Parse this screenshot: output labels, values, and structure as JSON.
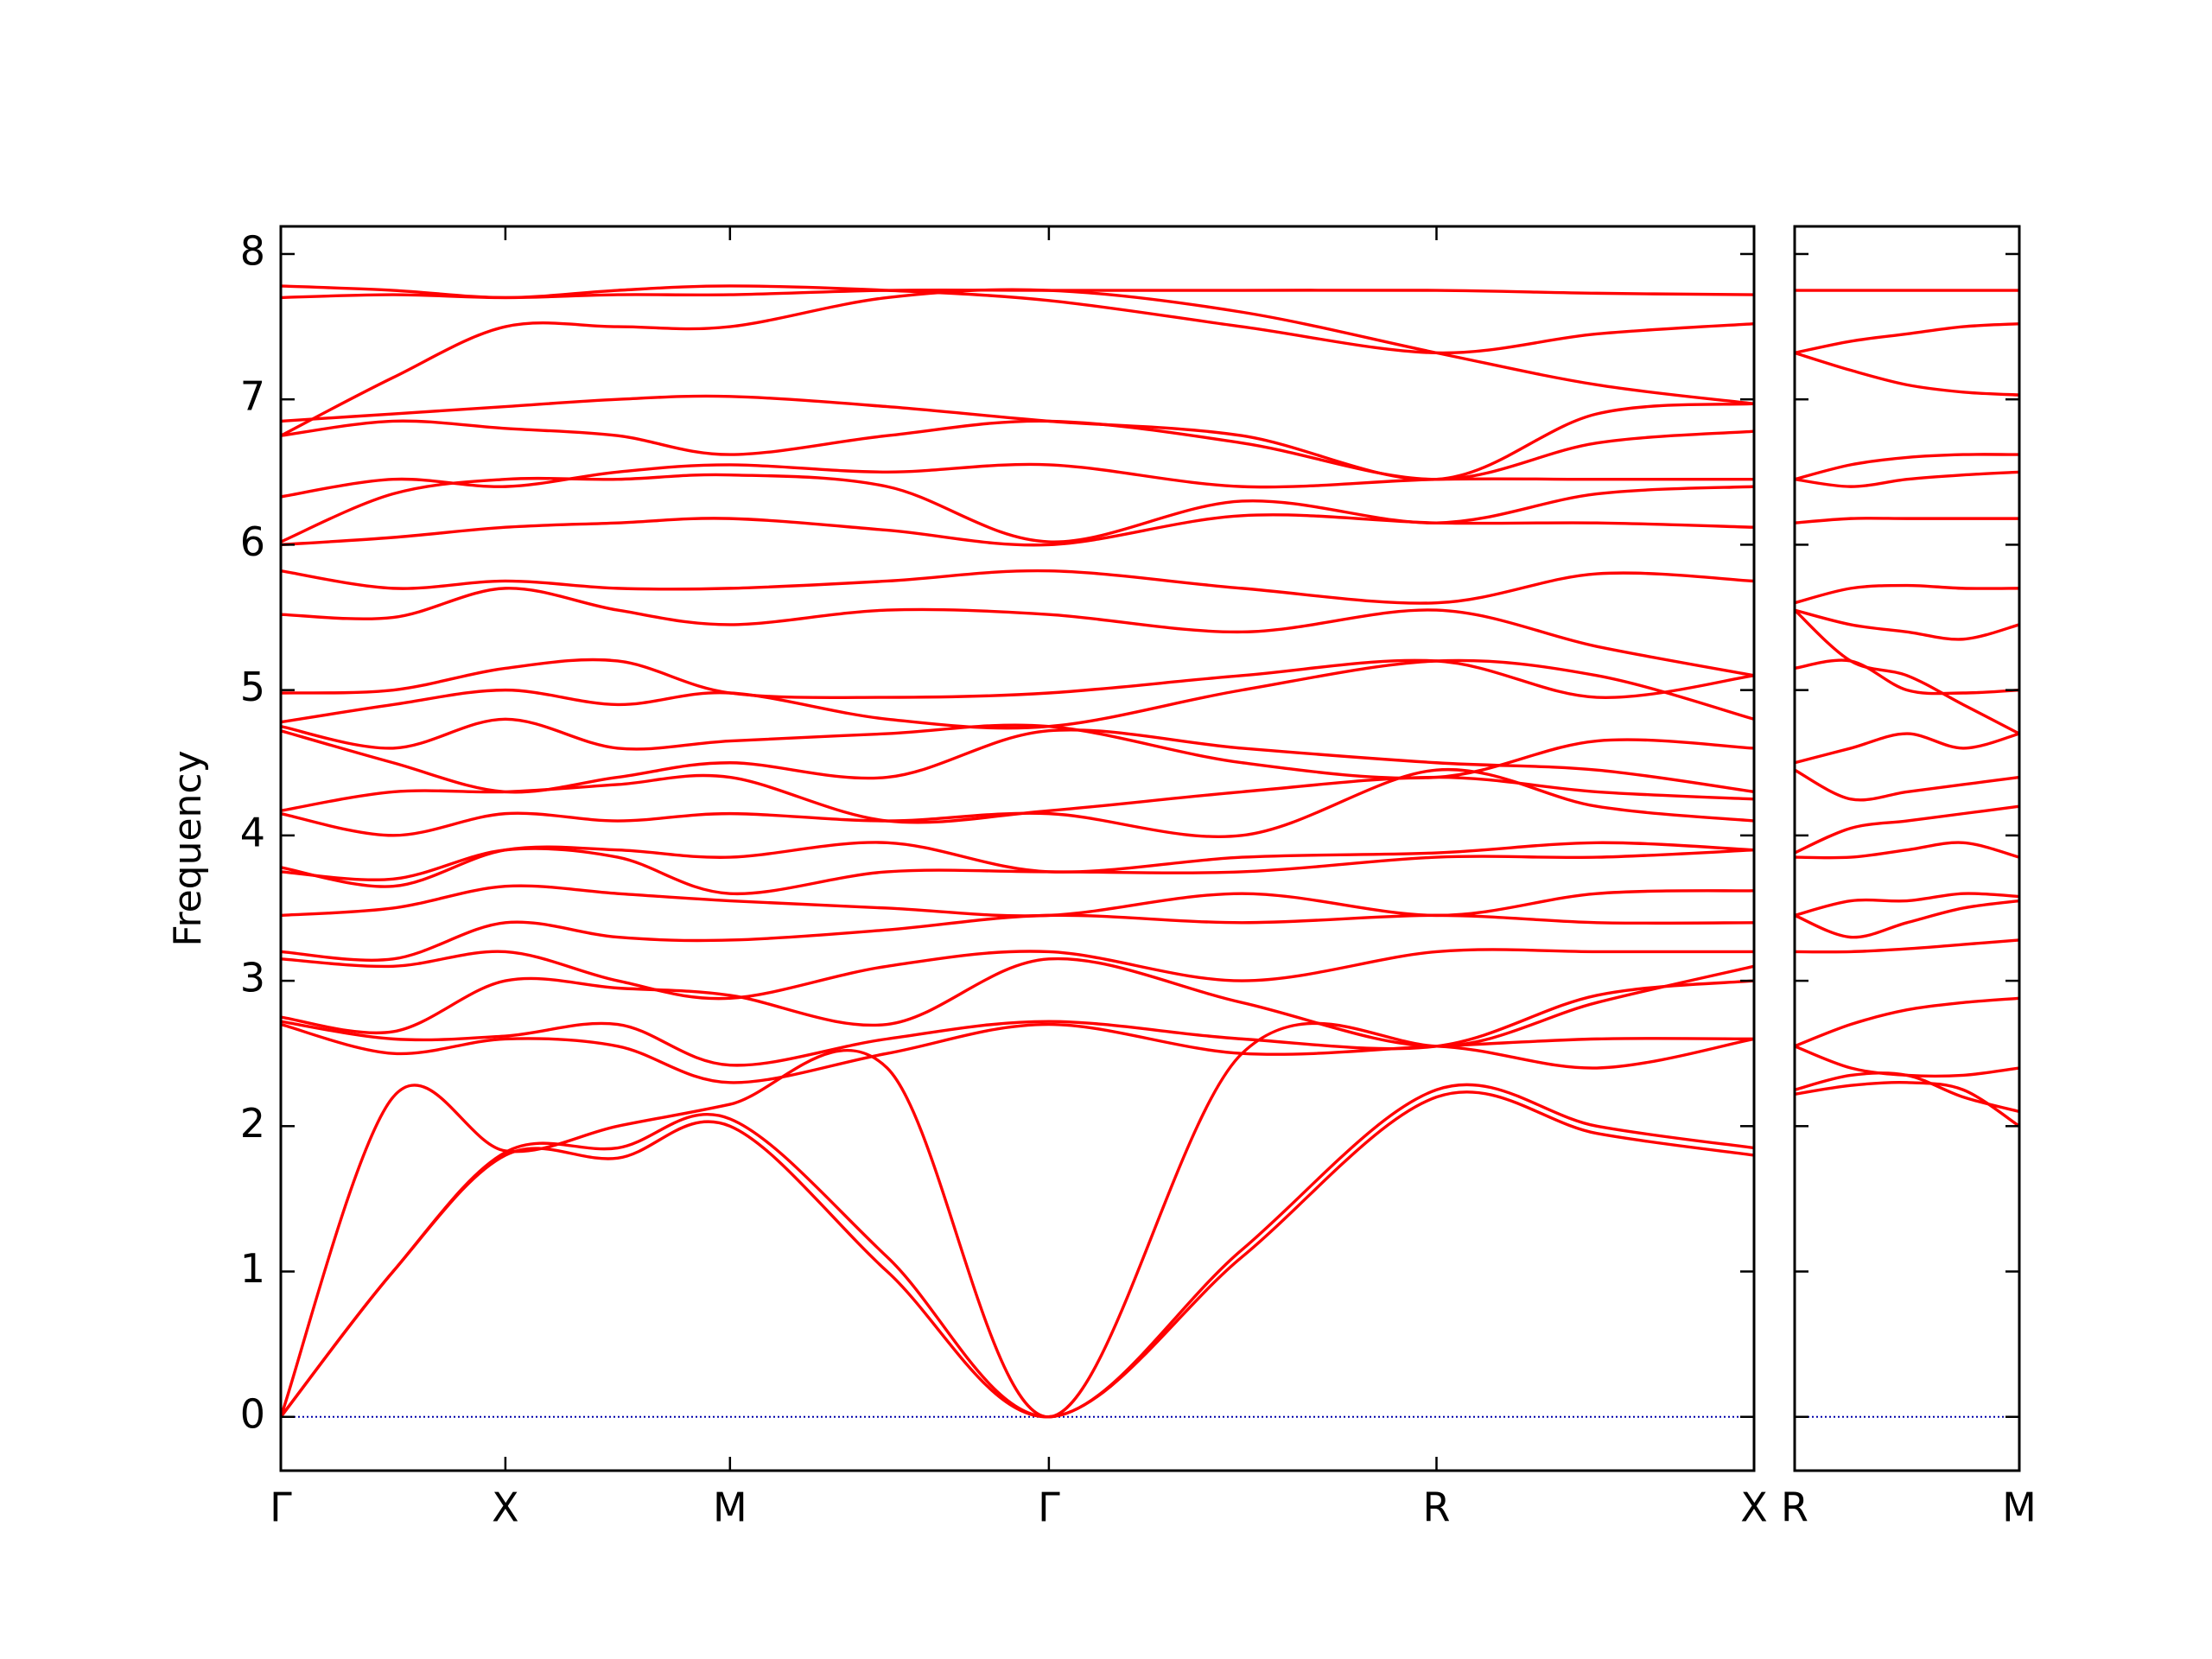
{
  "chart_data": [
    {
      "type": "line",
      "ylabel": "Frequency",
      "color": "#ff0000",
      "zero_line": true,
      "zero_line_color": "#0000aa",
      "x": [
        0,
        0.25,
        0.5,
        0.75,
        1.0,
        1.35,
        1.71,
        2.14,
        2.573,
        2.93,
        3.28
      ],
      "xlim": [
        0,
        3.28
      ],
      "xticks": [
        {
          "value": 0,
          "label": "Γ"
        },
        {
          "value": 0.5,
          "label": "X"
        },
        {
          "value": 1.0,
          "label": "M"
        },
        {
          "value": 1.71,
          "label": "Γ"
        },
        {
          "value": 2.573,
          "label": "R"
        },
        {
          "value": 3.28,
          "label": "X"
        }
      ],
      "ylim": [
        -0.37,
        8.19
      ],
      "yticks": [
        0,
        1,
        2,
        3,
        4,
        5,
        6,
        7,
        8
      ],
      "series": [
        {
          "values": [
            0,
            1.0,
            1.8,
            1.78,
            2.0,
            1.0,
            0,
            1.1,
            2.2,
            1.95,
            1.8
          ]
        },
        {
          "values": [
            0,
            1.0,
            1.82,
            1.85,
            2.05,
            1.1,
            0,
            1.15,
            2.25,
            2.0,
            1.85
          ]
        },
        {
          "values": [
            0,
            2.2,
            1.83,
            2.0,
            2.15,
            2.4,
            0,
            2.5,
            2.55,
            2.4,
            2.6
          ]
        },
        {
          "values": [
            2.7,
            2.5,
            2.6,
            2.55,
            2.3,
            2.5,
            2.7,
            2.5,
            2.55,
            2.6,
            2.6
          ]
        },
        {
          "values": [
            2.72,
            2.6,
            2.62,
            2.7,
            2.42,
            2.6,
            2.72,
            2.6,
            2.55,
            2.9,
            3.0
          ]
        },
        {
          "values": [
            2.75,
            2.65,
            3.0,
            2.95,
            2.9,
            2.7,
            3.15,
            2.85,
            2.55,
            2.85,
            3.1
          ]
        },
        {
          "values": [
            3.15,
            3.1,
            3.2,
            3.0,
            2.88,
            3.1,
            3.2,
            3.0,
            3.2,
            3.2,
            3.2
          ]
        },
        {
          "values": [
            3.2,
            3.15,
            3.4,
            3.3,
            3.28,
            3.35,
            3.45,
            3.4,
            3.45,
            3.4,
            3.4
          ]
        },
        {
          "values": [
            3.45,
            3.5,
            3.65,
            3.6,
            3.55,
            3.5,
            3.45,
            3.6,
            3.45,
            3.6,
            3.62
          ]
        },
        {
          "values": [
            3.75,
            3.7,
            3.9,
            3.85,
            3.6,
            3.75,
            3.75,
            3.75,
            3.85,
            3.85,
            3.9
          ]
        },
        {
          "values": [
            3.78,
            3.65,
            3.9,
            3.9,
            3.85,
            3.95,
            3.75,
            3.85,
            3.88,
            3.95,
            3.9
          ]
        },
        {
          "values": [
            4.15,
            4.0,
            4.15,
            4.1,
            4.15,
            4.1,
            4.15,
            4.0,
            4.45,
            4.2,
            4.1
          ]
        },
        {
          "values": [
            4.17,
            4.3,
            4.3,
            4.35,
            4.4,
            4.1,
            4.17,
            4.3,
            4.4,
            4.3,
            4.25
          ]
        },
        {
          "values": [
            4.72,
            4.5,
            4.3,
            4.4,
            4.5,
            4.4,
            4.72,
            4.6,
            4.5,
            4.45,
            4.3
          ]
        },
        {
          "values": [
            4.75,
            4.6,
            4.8,
            4.6,
            4.65,
            4.7,
            4.75,
            4.5,
            4.4,
            4.65,
            4.6
          ]
        },
        {
          "values": [
            4.78,
            4.9,
            5.0,
            4.9,
            4.98,
            4.8,
            4.75,
            5.0,
            5.2,
            5.1,
            4.8
          ]
        },
        {
          "values": [
            4.98,
            5.0,
            5.15,
            5.2,
            4.98,
            4.95,
            4.98,
            5.1,
            5.2,
            4.95,
            5.1
          ]
        },
        {
          "values": [
            5.52,
            5.5,
            5.7,
            5.55,
            5.45,
            5.55,
            5.52,
            5.4,
            5.55,
            5.3,
            5.1
          ]
        },
        {
          "values": [
            5.82,
            5.7,
            5.75,
            5.7,
            5.7,
            5.75,
            5.82,
            5.7,
            5.6,
            5.8,
            5.75
          ]
        },
        {
          "values": [
            6.0,
            6.05,
            6.12,
            6.15,
            6.18,
            6.1,
            6.0,
            6.2,
            6.15,
            6.15,
            6.12
          ]
        },
        {
          "values": [
            6.02,
            6.35,
            6.45,
            6.45,
            6.48,
            6.4,
            6.02,
            6.3,
            6.15,
            6.35,
            6.4
          ]
        },
        {
          "values": [
            6.33,
            6.45,
            6.4,
            6.5,
            6.55,
            6.5,
            6.55,
            6.4,
            6.45,
            6.45,
            6.45
          ]
        },
        {
          "values": [
            6.75,
            6.85,
            6.8,
            6.75,
            6.62,
            6.75,
            6.85,
            6.7,
            6.45,
            6.7,
            6.78
          ]
        },
        {
          "values": [
            6.85,
            6.9,
            6.95,
            7.0,
            7.02,
            6.95,
            6.85,
            6.75,
            6.45,
            6.9,
            6.97
          ]
        },
        {
          "values": [
            6.75,
            7.15,
            7.5,
            7.5,
            7.5,
            7.7,
            7.75,
            7.6,
            7.32,
            7.1,
            6.97
          ]
        },
        {
          "values": [
            7.7,
            7.72,
            7.7,
            7.72,
            7.72,
            7.75,
            7.75,
            7.75,
            7.75,
            7.73,
            7.72
          ]
        },
        {
          "values": [
            7.78,
            7.75,
            7.7,
            7.75,
            7.78,
            7.75,
            7.68,
            7.5,
            7.32,
            7.45,
            7.52
          ]
        }
      ]
    },
    {
      "type": "line",
      "color": "#ff0000",
      "zero_line": true,
      "zero_line_color": "#0000aa",
      "x": [
        0,
        0.125,
        0.25,
        0.375,
        0.5
      ],
      "xlim": [
        0,
        0.5
      ],
      "xticks": [
        {
          "value": 0,
          "label": "R"
        },
        {
          "value": 0.5,
          "label": "M"
        }
      ],
      "ylim": [
        -0.37,
        8.19
      ],
      "yticks": [
        0,
        1,
        2,
        3,
        4,
        5,
        6,
        7,
        8
      ],
      "series": [
        {
          "values": [
            2.22,
            2.28,
            2.3,
            2.25,
            2.0
          ]
        },
        {
          "values": [
            2.25,
            2.35,
            2.35,
            2.2,
            2.1
          ]
        },
        {
          "values": [
            2.55,
            2.4,
            2.35,
            2.35,
            2.4
          ]
        },
        {
          "values": [
            2.55,
            2.7,
            2.8,
            2.85,
            2.88
          ]
        },
        {
          "values": [
            3.2,
            3.2,
            3.22,
            3.25,
            3.28
          ]
        },
        {
          "values": [
            3.45,
            3.3,
            3.4,
            3.5,
            3.55
          ]
        },
        {
          "values": [
            3.45,
            3.55,
            3.55,
            3.6,
            3.58
          ]
        },
        {
          "values": [
            3.85,
            3.85,
            3.9,
            3.95,
            3.85
          ]
        },
        {
          "values": [
            3.88,
            4.05,
            4.1,
            4.15,
            4.2
          ]
        },
        {
          "values": [
            4.45,
            4.25,
            4.3,
            4.35,
            4.4
          ]
        },
        {
          "values": [
            4.5,
            4.6,
            4.7,
            4.6,
            4.7
          ]
        },
        {
          "values": [
            5.15,
            5.2,
            5.0,
            4.98,
            5.0
          ]
        },
        {
          "values": [
            5.55,
            5.2,
            5.1,
            4.9,
            4.7
          ]
        },
        {
          "values": [
            5.55,
            5.45,
            5.4,
            5.35,
            5.45
          ]
        },
        {
          "values": [
            5.6,
            5.7,
            5.72,
            5.7,
            5.7
          ]
        },
        {
          "values": [
            6.15,
            6.18,
            6.18,
            6.18,
            6.18
          ]
        },
        {
          "values": [
            6.45,
            6.4,
            6.45,
            6.48,
            6.5
          ]
        },
        {
          "values": [
            6.45,
            6.55,
            6.6,
            6.62,
            6.62
          ]
        },
        {
          "values": [
            7.32,
            7.2,
            7.1,
            7.05,
            7.03
          ]
        },
        {
          "values": [
            7.32,
            7.4,
            7.45,
            7.5,
            7.52
          ]
        },
        {
          "values": [
            7.75,
            7.75,
            7.75,
            7.75,
            7.75
          ]
        }
      ]
    }
  ]
}
